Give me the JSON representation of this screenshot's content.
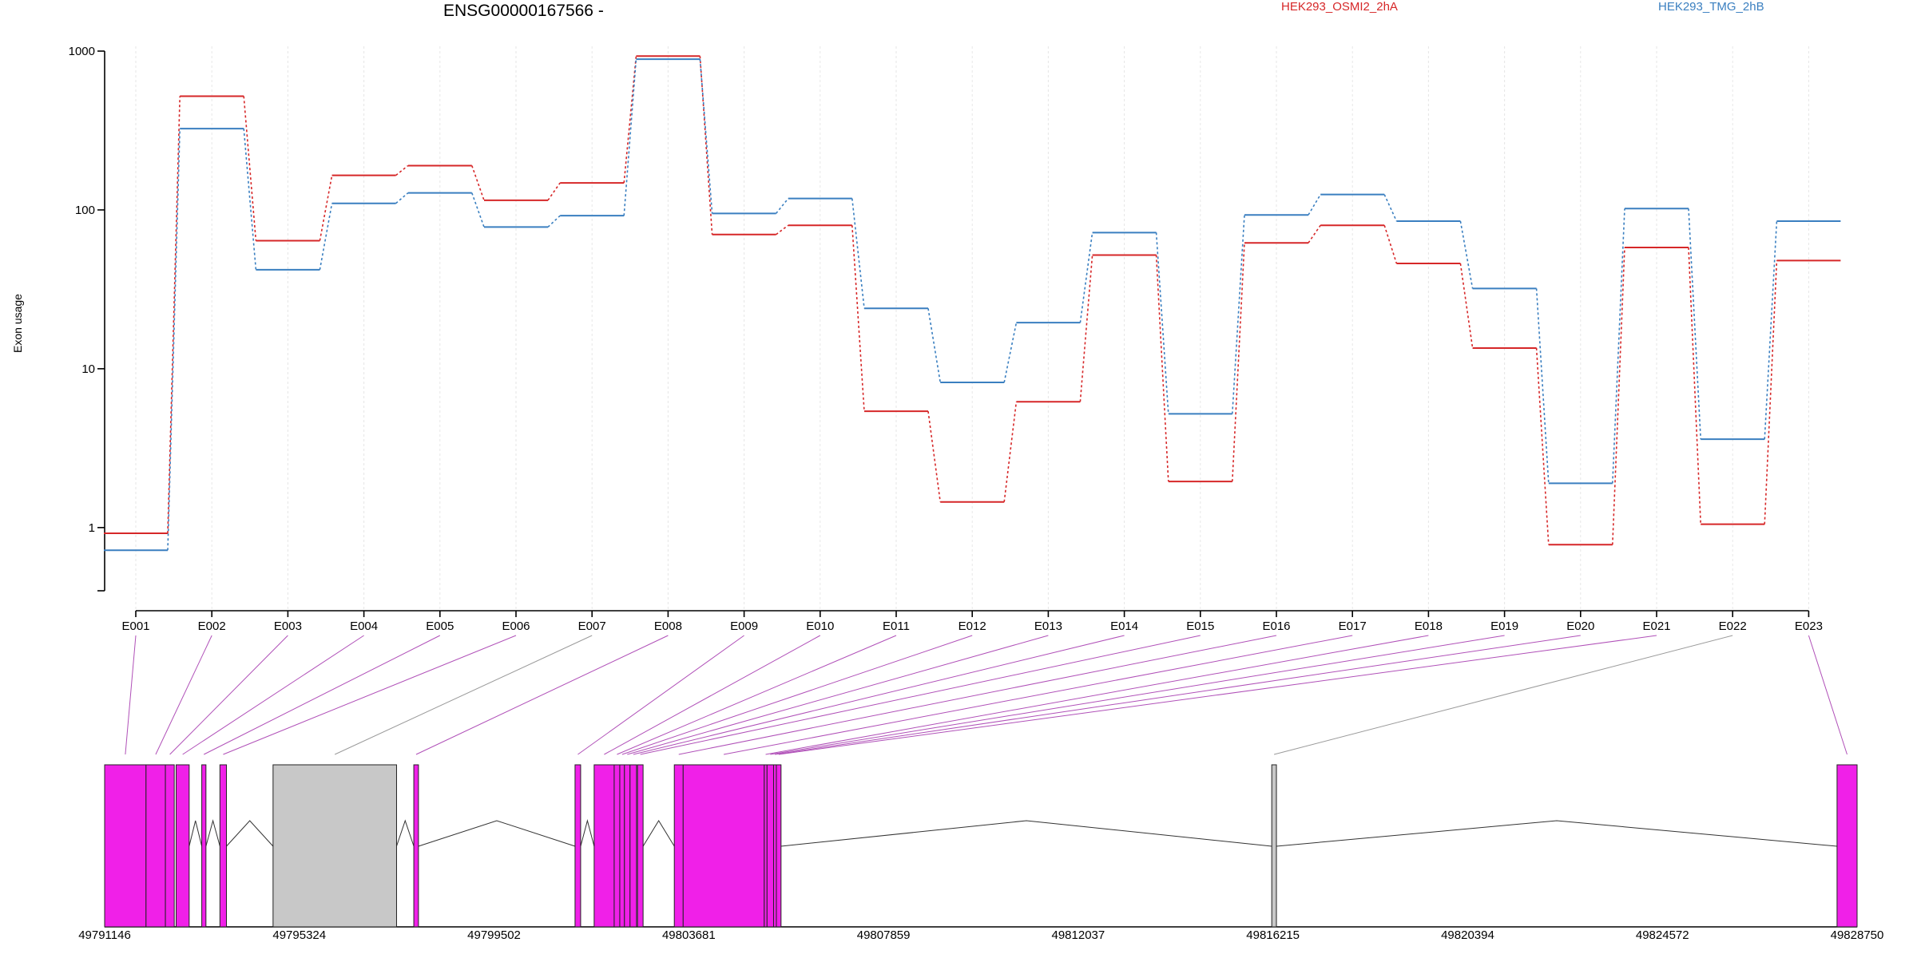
{
  "chart_data": {
    "type": "line",
    "title": "ENSG00000167566 -",
    "ylabel": "Exon usage",
    "xlabel": "",
    "y_scale": "log",
    "ylim": [
      0.4,
      1000
    ],
    "yticks": [
      "1",
      "10",
      "100",
      "1000"
    ],
    "ytick_values": [
      1,
      10,
      100,
      1000
    ],
    "grid": "vertical lines at exons",
    "categories": [
      "E001",
      "E002",
      "E003",
      "E004",
      "E005",
      "E006",
      "E007",
      "E008",
      "E009",
      "E010",
      "E011",
      "E012",
      "E013",
      "E014",
      "E015",
      "E016",
      "E017",
      "E018",
      "E019",
      "E020",
      "E021",
      "E022",
      "E023"
    ],
    "series": [
      {
        "name": "HEK293_OSMI2_2hA",
        "color": "#d62728",
        "values": [
          0.92,
          520,
          64,
          165,
          190,
          115,
          148,
          930,
          70,
          80,
          5.4,
          1.45,
          6.2,
          52,
          1.95,
          62,
          80,
          46,
          13.5,
          0.78,
          58,
          1.05,
          48
        ]
      },
      {
        "name": "HEK293_TMG_2hB",
        "color": "#3a7fc0",
        "values": [
          0.72,
          325,
          42,
          110,
          128,
          78,
          92,
          890,
          95,
          118,
          24,
          8.2,
          19.5,
          72,
          5.2,
          93,
          125,
          85,
          32,
          1.9,
          102,
          3.6,
          85
        ]
      }
    ],
    "gene_model": {
      "genomic_ticks": [
        "49791146",
        "49795324",
        "49799502",
        "49803681",
        "49807859",
        "49812037",
        "49816215",
        "49820394",
        "49824572",
        "49828750"
      ],
      "range": [
        49791146,
        49828750
      ],
      "exons": [
        {
          "id": "E001",
          "start": 49791146,
          "end": 49792034,
          "color": "#f020e8"
        },
        {
          "id": "E002",
          "start": 49792034,
          "end": 49792450,
          "color": "#f020e8"
        },
        {
          "id": "E003",
          "start": 49792450,
          "end": 49792640,
          "color": "#f020e8"
        },
        {
          "id": "E004",
          "start": 49792680,
          "end": 49792960,
          "color": "#f020e8"
        },
        {
          "id": "E005",
          "start": 49793230,
          "end": 49793320,
          "color": "#f020e8"
        },
        {
          "id": "E006",
          "start": 49793620,
          "end": 49793760,
          "color": "#f020e8"
        },
        {
          "id": "E007",
          "start": 49794760,
          "end": 49797410,
          "color": "#c8c8c8"
        },
        {
          "id": "E008",
          "start": 49797780,
          "end": 49797880,
          "color": "#f020e8"
        },
        {
          "id": "E009",
          "start": 49801240,
          "end": 49801360,
          "color": "#f020e8"
        },
        {
          "id": "E010",
          "start": 49801650,
          "end": 49802080,
          "color": "#f020e8"
        },
        {
          "id": "E011",
          "start": 49802080,
          "end": 49802200,
          "color": "#f020e8"
        },
        {
          "id": "E012",
          "start": 49802200,
          "end": 49802300,
          "color": "#f020e8"
        },
        {
          "id": "E013",
          "start": 49802300,
          "end": 49802420,
          "color": "#f020e8"
        },
        {
          "id": "E014",
          "start": 49802420,
          "end": 49802560,
          "color": "#f020e8"
        },
        {
          "id": "E015",
          "start": 49802580,
          "end": 49802700,
          "color": "#f020e8"
        },
        {
          "id": "E016",
          "start": 49803370,
          "end": 49803560,
          "color": "#f020e8"
        },
        {
          "id": "E017",
          "start": 49803560,
          "end": 49805300,
          "color": "#f020e8"
        },
        {
          "id": "E018",
          "start": 49805300,
          "end": 49805360,
          "color": "#f020e8"
        },
        {
          "id": "E019",
          "start": 49805360,
          "end": 49805500,
          "color": "#f020e8"
        },
        {
          "id": "E020",
          "start": 49805500,
          "end": 49805560,
          "color": "#f020e8"
        },
        {
          "id": "E021",
          "start": 49805560,
          "end": 49805660,
          "color": "#f020e8"
        },
        {
          "id": "E022",
          "start": 49816190,
          "end": 49816290,
          "color": "#c8c8c8"
        },
        {
          "id": "E023",
          "start": 49828320,
          "end": 49828750,
          "color": "#f020e8"
        }
      ]
    }
  }
}
